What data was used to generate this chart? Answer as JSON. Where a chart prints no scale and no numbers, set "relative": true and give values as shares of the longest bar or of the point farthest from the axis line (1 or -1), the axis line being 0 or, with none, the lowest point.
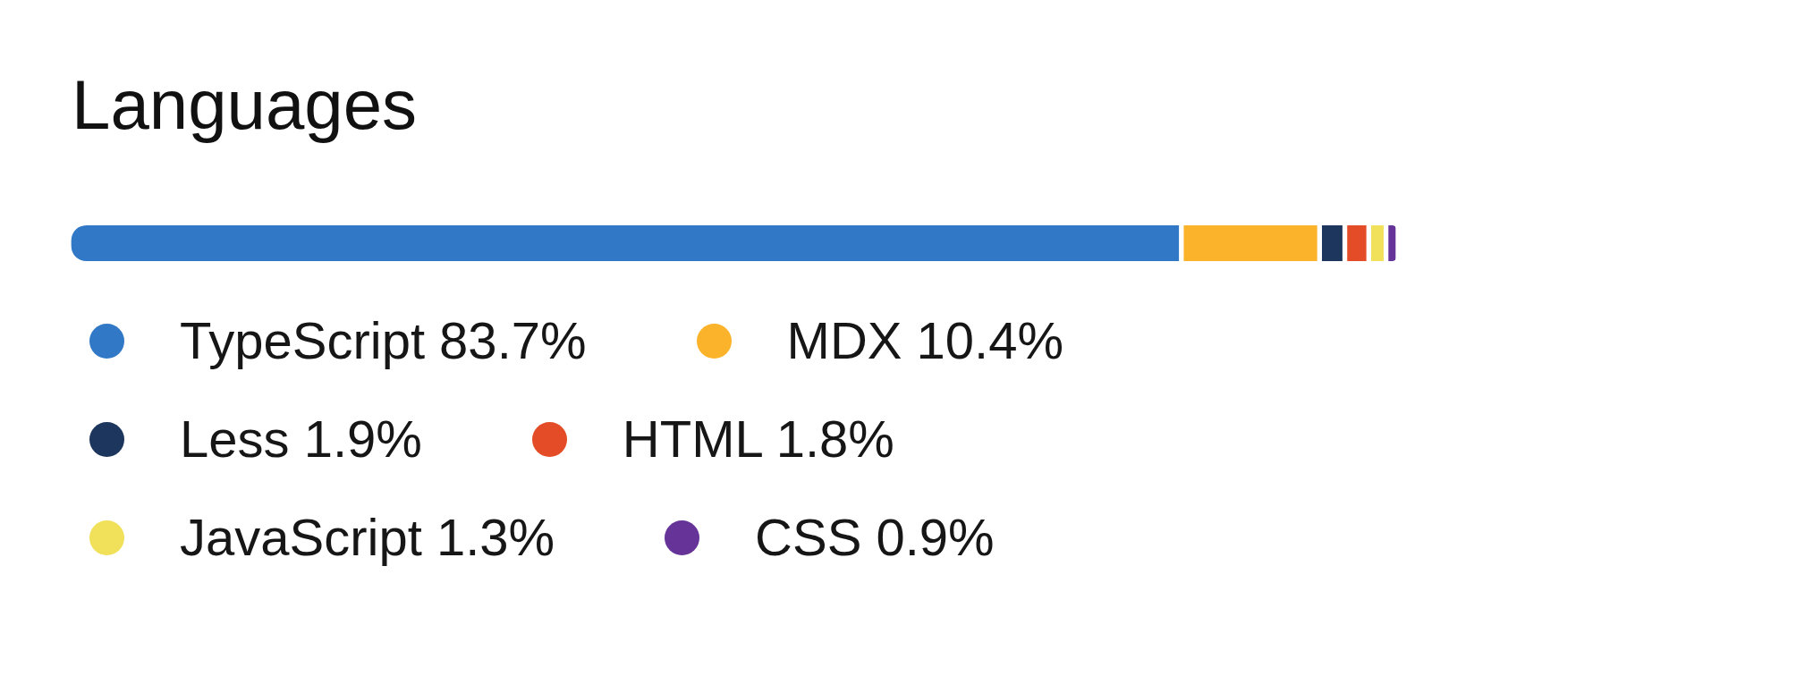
{
  "chart_data": {
    "type": "bar",
    "title": "Languages",
    "orientation": "horizontal",
    "stacked": true,
    "relative": true,
    "legend": "bottom",
    "categories": [
      null
    ],
    "series": [
      {
        "name": "TypeScript 83.7%",
        "color": "#3178c6",
        "values": [
          0.837
        ]
      },
      {
        "name": "MDX 10.4%",
        "color": "#fcb32c",
        "values": [
          0.104
        ]
      },
      {
        "name": "Less 1.9%",
        "color": "#1d365d",
        "values": [
          0.019
        ]
      },
      {
        "name": "HTML 1.8%",
        "color": "#e34c26",
        "values": [
          0.018
        ]
      },
      {
        "name": "JavaScript 1.3%",
        "color": "#f1e05a",
        "values": [
          0.013
        ]
      },
      {
        "name": "CSS 0.9%",
        "color": "#663399",
        "values": [
          0.009
        ]
      }
    ]
  }
}
